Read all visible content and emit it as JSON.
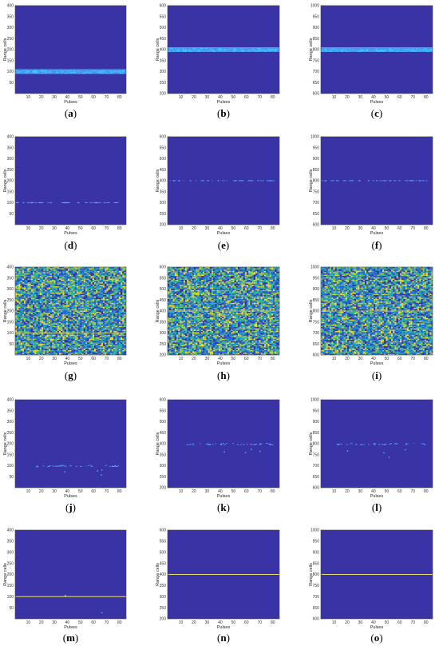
{
  "colors": {
    "background": "#3a33a6",
    "stripe_light": "#4fa8ff",
    "stripe_core": "#2fd6ff",
    "line_yellow": "#e8e070",
    "noise_palette": [
      "#3b2fa0",
      "#2a6fd8",
      "#1aa6c8",
      "#3fc08a",
      "#a8d040",
      "#f0e030",
      "#2560e0",
      "#33b0b0"
    ]
  },
  "chart_data": [
    {
      "label": "(a)",
      "type": "heatmap",
      "xlabel": "Pulses",
      "ylabel": "Range cells",
      "xlim": [
        0,
        85
      ],
      "ylim": [
        0,
        400
      ],
      "x_ticks": [
        10,
        20,
        30,
        40,
        50,
        60,
        70,
        80
      ],
      "y_ticks": [
        50,
        100,
        150,
        200,
        250,
        300,
        350,
        400
      ],
      "target_range_cell": 100,
      "pattern": "thick-stripe"
    },
    {
      "label": "(b)",
      "type": "heatmap",
      "xlabel": "Pulses",
      "ylabel": "Range cells",
      "xlim": [
        0,
        85
      ],
      "ylim": [
        200,
        600
      ],
      "x_ticks": [
        10,
        20,
        30,
        40,
        50,
        60,
        70,
        80
      ],
      "y_ticks": [
        200,
        250,
        300,
        350,
        400,
        450,
        500,
        550,
        600
      ],
      "target_range_cell": 400,
      "pattern": "thick-stripe"
    },
    {
      "label": "(c)",
      "type": "heatmap",
      "xlabel": "Pulses",
      "ylabel": "Range cells",
      "xlim": [
        0,
        85
      ],
      "ylim": [
        600,
        1000
      ],
      "x_ticks": [
        10,
        20,
        30,
        40,
        50,
        60,
        70,
        80
      ],
      "y_ticks": [
        600,
        650,
        700,
        750,
        800,
        850,
        900,
        950,
        1000
      ],
      "target_range_cell": 800,
      "pattern": "thick-stripe"
    },
    {
      "label": "(d)",
      "type": "heatmap",
      "xlabel": "Pulses",
      "ylabel": "Range cells",
      "xlim": [
        0,
        85
      ],
      "ylim": [
        0,
        400
      ],
      "x_ticks": [
        10,
        20,
        30,
        40,
        50,
        60,
        70,
        80
      ],
      "y_ticks": [
        50,
        100,
        150,
        200,
        250,
        300,
        350,
        400
      ],
      "target_range_cell": 100,
      "pattern": "faint-dashes"
    },
    {
      "label": "(e)",
      "type": "heatmap",
      "xlabel": "Pulses",
      "ylabel": "Range cells",
      "xlim": [
        0,
        85
      ],
      "ylim": [
        200,
        600
      ],
      "x_ticks": [
        10,
        20,
        30,
        40,
        50,
        60,
        70,
        80
      ],
      "y_ticks": [
        200,
        250,
        300,
        350,
        400,
        450,
        500,
        550,
        600
      ],
      "target_range_cell": 400,
      "pattern": "faint-dashes"
    },
    {
      "label": "(f)",
      "type": "heatmap",
      "xlabel": "Pulses",
      "ylabel": "Range cells",
      "xlim": [
        0,
        85
      ],
      "ylim": [
        600,
        1000
      ],
      "x_ticks": [
        10,
        20,
        30,
        40,
        50,
        60,
        70,
        80
      ],
      "y_ticks": [
        600,
        650,
        700,
        750,
        800,
        850,
        900,
        950,
        1000
      ],
      "target_range_cell": 800,
      "pattern": "faint-dashes"
    },
    {
      "label": "(g)",
      "type": "heatmap",
      "xlabel": "Pulses",
      "ylabel": "Range cells",
      "xlim": [
        0,
        85
      ],
      "ylim": [
        0,
        400
      ],
      "x_ticks": [
        10,
        20,
        30,
        40,
        50,
        60,
        70,
        80
      ],
      "y_ticks": [
        50,
        100,
        150,
        200,
        250,
        300,
        350,
        400
      ],
      "target_range_cell": 100,
      "pattern": "noise"
    },
    {
      "label": "(h)",
      "type": "heatmap",
      "xlabel": "Pulses",
      "ylabel": "Range cells",
      "xlim": [
        0,
        85
      ],
      "ylim": [
        200,
        600
      ],
      "x_ticks": [
        10,
        20,
        30,
        40,
        50,
        60,
        70,
        80
      ],
      "y_ticks": [
        200,
        250,
        300,
        350,
        400,
        450,
        500,
        550,
        600
      ],
      "target_range_cell": 400,
      "pattern": "noise"
    },
    {
      "label": "(i)",
      "type": "heatmap",
      "xlabel": "Pulses",
      "ylabel": "Range cells",
      "xlim": [
        0,
        85
      ],
      "ylim": [
        600,
        1000
      ],
      "x_ticks": [
        10,
        20,
        30,
        40,
        50,
        60,
        70,
        80
      ],
      "y_ticks": [
        600,
        650,
        700,
        750,
        800,
        850,
        900,
        950,
        1000
      ],
      "target_range_cell": 800,
      "pattern": "noise"
    },
    {
      "label": "(j)",
      "type": "heatmap",
      "xlabel": "Pulses",
      "ylabel": "Range cells",
      "xlim": [
        0,
        85
      ],
      "ylim": [
        0,
        400
      ],
      "x_ticks": [
        10,
        20,
        30,
        40,
        50,
        60,
        70,
        80
      ],
      "y_ticks": [
        50,
        100,
        150,
        200,
        250,
        300,
        350,
        400
      ],
      "target_range_cell": 100,
      "pattern": "sparse-dots"
    },
    {
      "label": "(k)",
      "type": "heatmap",
      "xlabel": "Pulses",
      "ylabel": "Range cells",
      "xlim": [
        0,
        85
      ],
      "ylim": [
        200,
        600
      ],
      "x_ticks": [
        10,
        20,
        30,
        40,
        50,
        60,
        70,
        80
      ],
      "y_ticks": [
        200,
        250,
        300,
        350,
        400,
        450,
        500,
        550,
        600
      ],
      "target_range_cell": 400,
      "pattern": "sparse-dots"
    },
    {
      "label": "(l)",
      "type": "heatmap",
      "xlabel": "Pulses",
      "ylabel": "Range cells",
      "xlim": [
        0,
        85
      ],
      "ylim": [
        600,
        1000
      ],
      "x_ticks": [
        10,
        20,
        30,
        40,
        50,
        60,
        70,
        80
      ],
      "y_ticks": [
        600,
        650,
        700,
        750,
        800,
        850,
        900,
        950,
        1000
      ],
      "target_range_cell": 800,
      "pattern": "sparse-dots"
    },
    {
      "label": "(m)",
      "type": "heatmap",
      "xlabel": "Pulses",
      "ylabel": "Range cells",
      "xlim": [
        0,
        85
      ],
      "ylim": [
        0,
        400
      ],
      "x_ticks": [
        10,
        20,
        30,
        40,
        50,
        60,
        70,
        80
      ],
      "y_ticks": [
        50,
        100,
        150,
        200,
        250,
        300,
        350,
        400
      ],
      "target_range_cell": 100,
      "pattern": "thin-line"
    },
    {
      "label": "(n)",
      "type": "heatmap",
      "xlabel": "Pulses",
      "ylabel": "Range cells",
      "xlim": [
        0,
        85
      ],
      "ylim": [
        200,
        600
      ],
      "x_ticks": [
        10,
        20,
        30,
        40,
        50,
        60,
        70,
        80
      ],
      "y_ticks": [
        200,
        250,
        300,
        350,
        400,
        450,
        500,
        550,
        600
      ],
      "target_range_cell": 400,
      "pattern": "thin-line"
    },
    {
      "label": "(o)",
      "type": "heatmap",
      "xlabel": "Pulses",
      "ylabel": "Range cells",
      "xlim": [
        0,
        85
      ],
      "ylim": [
        600,
        1000
      ],
      "x_ticks": [
        10,
        20,
        30,
        40,
        50,
        60,
        70,
        80
      ],
      "y_ticks": [
        600,
        650,
        700,
        750,
        800,
        850,
        900,
        950,
        1000
      ],
      "target_range_cell": 800,
      "pattern": "thin-line"
    }
  ]
}
